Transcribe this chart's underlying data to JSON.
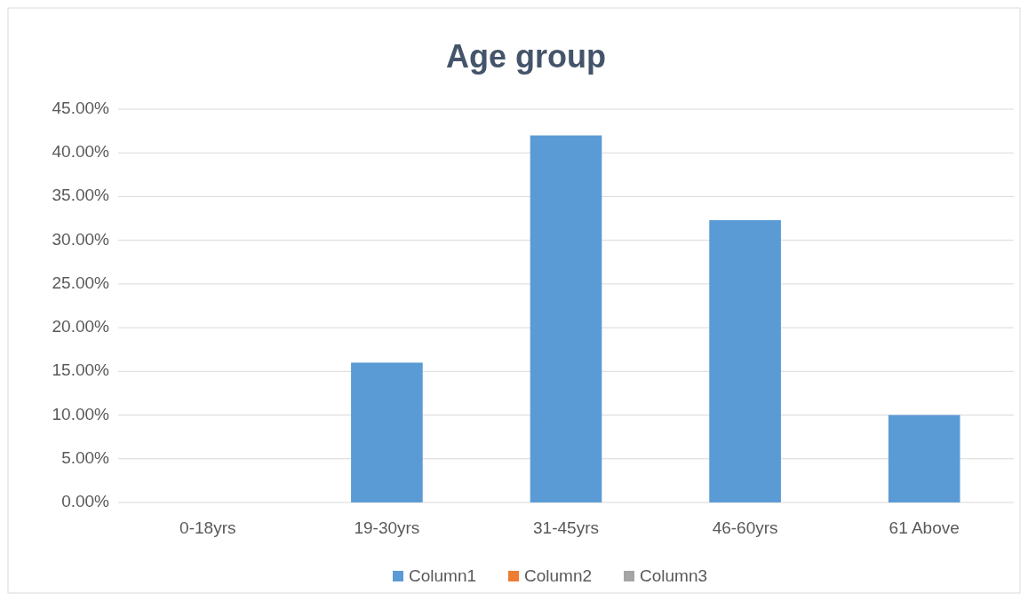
{
  "chart_data": {
    "type": "bar",
    "title": "Age group",
    "categories": [
      "0-18yrs",
      "19-30yrs",
      "31-45yrs",
      "46-60yrs",
      "61 Above"
    ],
    "series": [
      {
        "name": "Column1",
        "color": "#5b9bd5",
        "values": [
          null,
          16,
          42,
          32.3,
          10
        ]
      },
      {
        "name": "Column2",
        "color": "#ed7d31",
        "values": [
          null,
          null,
          null,
          null,
          null
        ]
      },
      {
        "name": "Column3",
        "color": "#a5a5a5",
        "values": [
          null,
          null,
          null,
          null,
          null
        ]
      }
    ],
    "ylim": [
      0,
      45
    ],
    "yticks": [
      {
        "value": 0,
        "label": "0.00%"
      },
      {
        "value": 5,
        "label": "5.00%"
      },
      {
        "value": 10,
        "label": "10.00%"
      },
      {
        "value": 15,
        "label": "15.00%"
      },
      {
        "value": 20,
        "label": "20.00%"
      },
      {
        "value": 25,
        "label": "25.00%"
      },
      {
        "value": 30,
        "label": "30.00%"
      },
      {
        "value": 35,
        "label": "35.00%"
      },
      {
        "value": 40,
        "label": "40.00%"
      },
      {
        "value": 45,
        "label": "45.00%"
      }
    ],
    "grid": "y",
    "legend": "bottom"
  }
}
